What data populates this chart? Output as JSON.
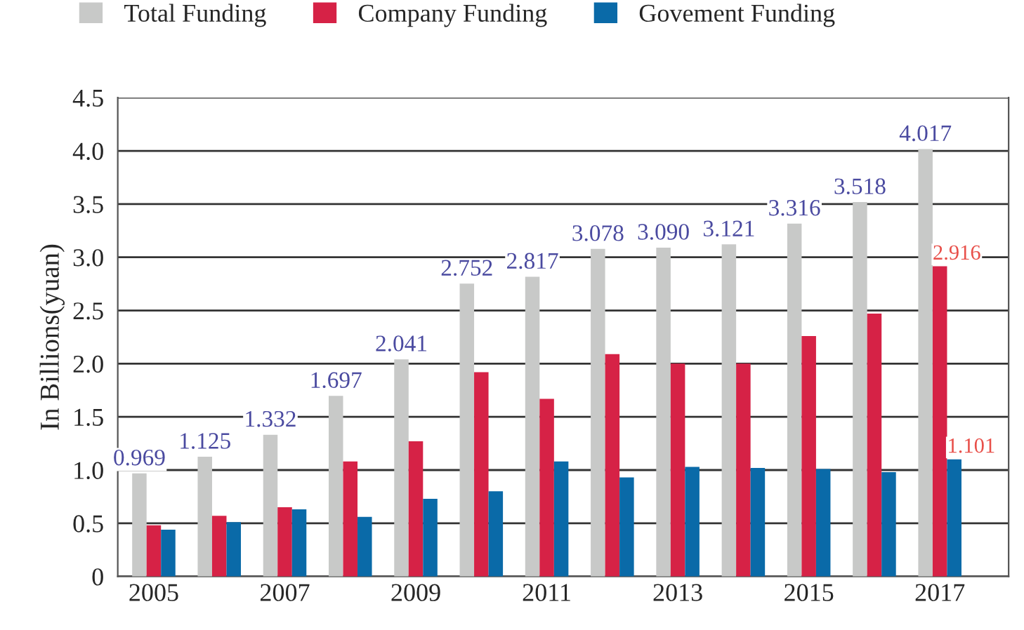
{
  "chart_data": {
    "type": "bar",
    "ylabel": "In Billions(yuan)",
    "categories": [
      "2005",
      null,
      "2007",
      null,
      "2009",
      null,
      "2011",
      null,
      "2013",
      null,
      "2015",
      null,
      "2017"
    ],
    "series": [
      {
        "name": "Total Funding",
        "color": "#c8c9c8",
        "values": [
          0.969,
          1.125,
          1.332,
          1.697,
          2.041,
          2.752,
          2.817,
          3.078,
          3.09,
          3.121,
          3.316,
          3.518,
          4.017
        ],
        "value_labels": [
          "0.969",
          "1.125",
          "1.332",
          "1.697",
          "2.041",
          "2.752",
          "2.817",
          "3.078",
          "3.090",
          "3.121",
          "3.316",
          "3.518",
          "4.017"
        ]
      },
      {
        "name": "Company Funding",
        "color": "#d62246",
        "values": [
          0.48,
          0.57,
          0.65,
          1.08,
          1.27,
          1.92,
          1.67,
          2.09,
          2.0,
          2.0,
          2.26,
          2.47,
          2.916
        ],
        "value_labels": [
          null,
          null,
          null,
          null,
          null,
          null,
          null,
          null,
          null,
          null,
          null,
          null,
          "2.916"
        ]
      },
      {
        "name": "Govement Funding",
        "color": "#0a6aa8",
        "values": [
          0.44,
          0.51,
          0.63,
          0.56,
          0.73,
          0.8,
          1.08,
          0.93,
          1.03,
          1.02,
          1.01,
          0.98,
          1.101
        ],
        "value_labels": [
          null,
          null,
          null,
          null,
          null,
          null,
          null,
          null,
          null,
          null,
          null,
          null,
          "1.101"
        ]
      }
    ],
    "ylim": [
      0,
      4.5
    ],
    "yticks": [
      0,
      0.5,
      {
        "value": 1,
        "label": "1.0"
      },
      1.5,
      {
        "value": 2,
        "label": "2.0"
      },
      2.5,
      {
        "value": 3,
        "label": "3.0"
      },
      3.5,
      {
        "value": 4,
        "label": "4.0"
      },
      4.5
    ],
    "grid": "y",
    "legend": "top"
  }
}
